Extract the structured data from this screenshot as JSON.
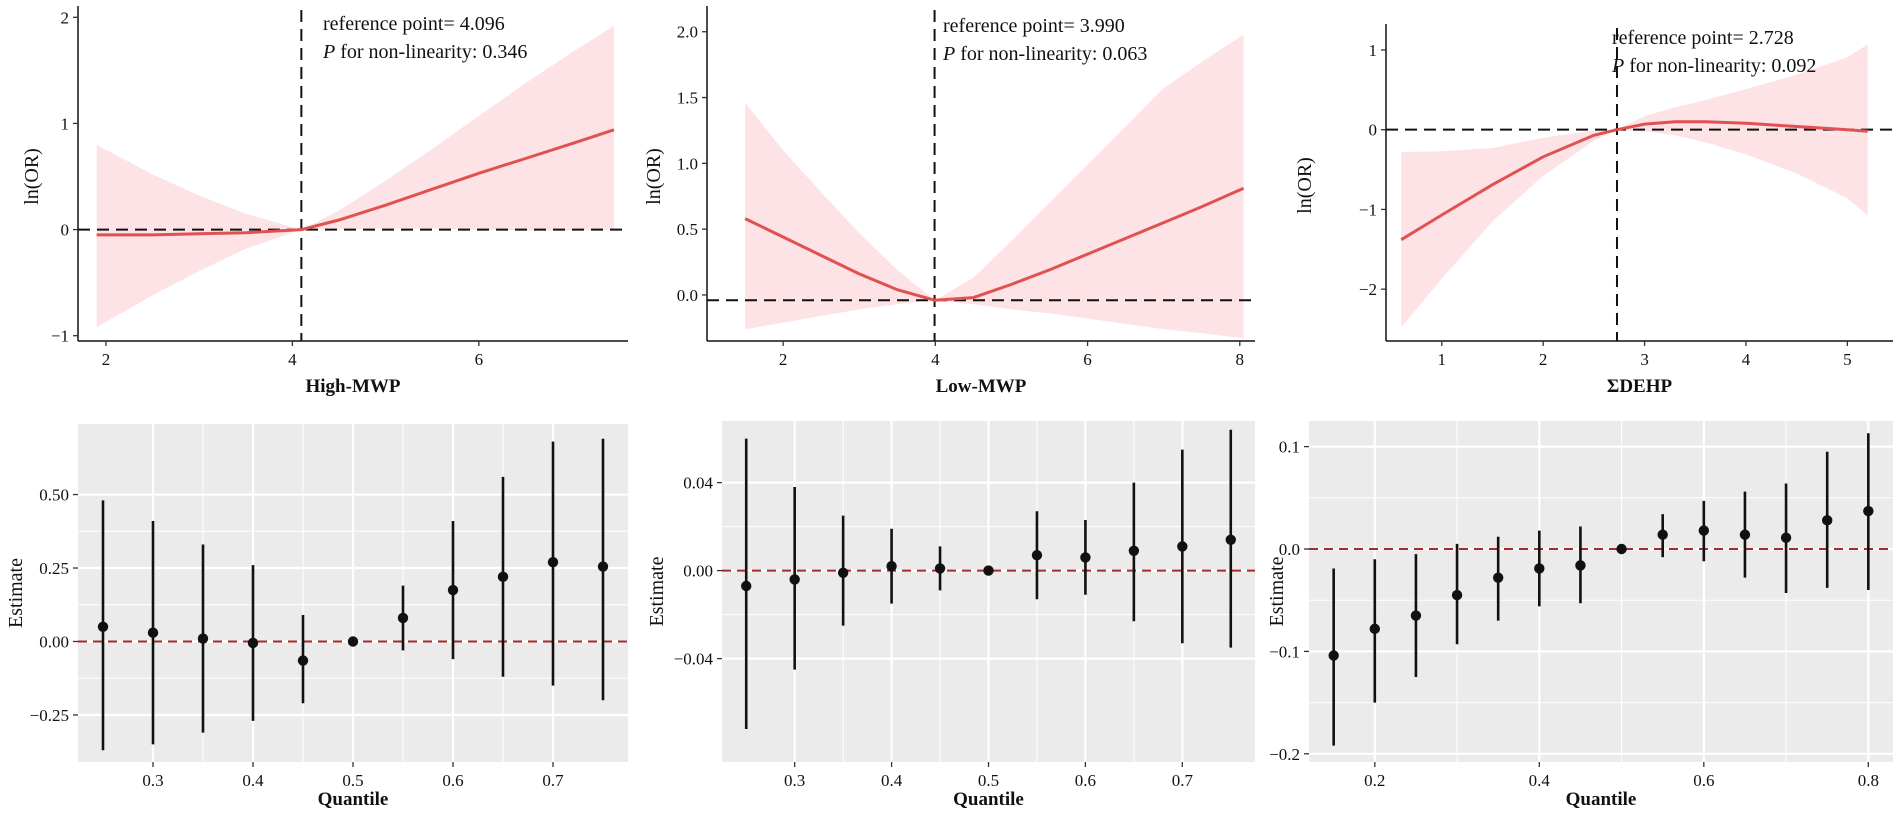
{
  "colors": {
    "curve": "#e05252",
    "band": "#fde3e6",
    "ref_dash": "#111111",
    "panel_bg": "#ebebeb",
    "grid": "#ffffff",
    "zero_line": "#a52a2a",
    "point": "#111111"
  },
  "chart_data": [
    {
      "id": "rcs-high-mwp",
      "type": "line",
      "style": "rcs",
      "xlabel": "High-MWP",
      "ylabel": "ln(OR)",
      "xlim": [
        1.7,
        7.6
      ],
      "ylim": [
        -1.05,
        2.05
      ],
      "xticks": [
        2,
        4,
        6
      ],
      "yticks": [
        -1,
        0,
        1,
        2
      ],
      "ytick_labels": [
        "−1",
        "0",
        "1",
        "2"
      ],
      "ref_x": 4.096,
      "annotation": {
        "line1": "reference point= 4.096",
        "p_label": "P",
        "p_text": " for non-linearity: 0.346"
      },
      "x": [
        1.9,
        2.5,
        3.0,
        3.5,
        4.096,
        4.5,
        5.0,
        5.5,
        6.0,
        6.5,
        7.0,
        7.45
      ],
      "y": [
        -0.05,
        -0.05,
        -0.04,
        -0.03,
        0.0,
        0.09,
        0.23,
        0.38,
        0.53,
        0.67,
        0.81,
        0.94
      ],
      "lower": [
        -0.92,
        -0.62,
        -0.39,
        -0.18,
        0.0,
        0.0,
        0.01,
        0.01,
        0.0,
        -0.01,
        -0.01,
        0.0
      ],
      "upper": [
        0.8,
        0.52,
        0.32,
        0.15,
        0.0,
        0.18,
        0.46,
        0.76,
        1.07,
        1.38,
        1.67,
        1.92
      ]
    },
    {
      "id": "rcs-low-mwp",
      "type": "line",
      "style": "rcs",
      "xlabel": "Low-MWP",
      "ylabel": "ln(OR)",
      "xlim": [
        1.0,
        8.2
      ],
      "ylim": [
        -0.35,
        2.15
      ],
      "xticks": [
        2,
        4,
        6,
        8
      ],
      "yticks": [
        0.0,
        0.5,
        1.0,
        1.5,
        2.0
      ],
      "ytick_labels": [
        "0.0",
        "0.5",
        "1.0",
        "1.5",
        "2.0"
      ],
      "ref_x": 3.99,
      "ref_y": -0.04,
      "annotation": {
        "line1": "reference point= 3.990",
        "p_label": "P",
        "p_text": " for non-linearity: 0.063"
      },
      "x": [
        1.5,
        2.0,
        2.5,
        3.0,
        3.5,
        3.99,
        4.5,
        5.0,
        5.5,
        6.0,
        6.5,
        7.0,
        7.5,
        8.05
      ],
      "y": [
        0.58,
        0.44,
        0.3,
        0.16,
        0.04,
        -0.04,
        -0.02,
        0.08,
        0.19,
        0.31,
        0.43,
        0.55,
        0.67,
        0.81
      ],
      "lower": [
        -0.26,
        -0.21,
        -0.16,
        -0.11,
        -0.07,
        -0.04,
        -0.07,
        -0.11,
        -0.14,
        -0.18,
        -0.22,
        -0.26,
        -0.29,
        -0.33
      ],
      "upper": [
        1.46,
        1.1,
        0.78,
        0.47,
        0.19,
        -0.04,
        0.13,
        0.41,
        0.7,
        0.99,
        1.28,
        1.57,
        1.77,
        1.98
      ]
    },
    {
      "id": "rcs-sum-dehp",
      "type": "line",
      "style": "rcs",
      "xlabel": "ΣDEHP",
      "ylabel": "ln(OR)",
      "xlim": [
        0.45,
        5.45
      ],
      "ylim": [
        -2.65,
        1.25
      ],
      "xticks": [
        1,
        2,
        3,
        4,
        5
      ],
      "yticks": [
        -2,
        -1,
        0,
        1
      ],
      "ytick_labels": [
        "−2",
        "−1",
        "0",
        "1"
      ],
      "ref_x": 2.728,
      "annotation": {
        "line1": "reference point= 2.728",
        "p_label": "P",
        "p_text": " for non-linearity: 0.092"
      },
      "x": [
        0.6,
        1.0,
        1.5,
        2.0,
        2.5,
        2.728,
        3.0,
        3.3,
        3.6,
        4.0,
        4.5,
        5.0,
        5.2
      ],
      "y": [
        -1.38,
        -1.07,
        -0.69,
        -0.34,
        -0.07,
        0.0,
        0.07,
        0.1,
        0.1,
        0.08,
        0.04,
        0.0,
        -0.02
      ],
      "lower": [
        -2.48,
        -1.87,
        -1.15,
        -0.58,
        -0.14,
        0.0,
        -0.02,
        -0.07,
        -0.16,
        -0.31,
        -0.55,
        -0.86,
        -1.08
      ],
      "upper": [
        -0.28,
        -0.27,
        -0.23,
        -0.1,
        -0.01,
        0.0,
        0.17,
        0.28,
        0.37,
        0.51,
        0.69,
        0.91,
        1.07
      ]
    },
    {
      "id": "qgc-high-mwp",
      "type": "scatter",
      "style": "errorbar",
      "xlabel": "Quantile",
      "ylabel": "Estimate",
      "xlim": [
        0.225,
        0.775
      ],
      "ylim": [
        -0.41,
        0.74
      ],
      "xticks": [
        0.3,
        0.4,
        0.5,
        0.6,
        0.7
      ],
      "xtick_labels": [
        "0.3",
        "0.4",
        "0.5",
        "0.6",
        "0.7"
      ],
      "yticks": [
        -0.25,
        0.0,
        0.25,
        0.5
      ],
      "ytick_labels": [
        "−0.25",
        "0.00",
        "0.25",
        "0.50"
      ],
      "x": [
        0.25,
        0.3,
        0.35,
        0.4,
        0.45,
        0.5,
        0.55,
        0.6,
        0.65,
        0.7,
        0.75
      ],
      "y": [
        0.05,
        0.03,
        0.01,
        -0.005,
        -0.065,
        0.0,
        0.08,
        0.175,
        0.22,
        0.27,
        0.255
      ],
      "lower": [
        -0.37,
        -0.35,
        -0.31,
        -0.27,
        -0.21,
        0.0,
        -0.03,
        -0.06,
        -0.12,
        -0.15,
        -0.2
      ],
      "upper": [
        0.48,
        0.41,
        0.33,
        0.26,
        0.09,
        0.0,
        0.19,
        0.41,
        0.56,
        0.68,
        0.69
      ]
    },
    {
      "id": "qgc-low-mwp",
      "type": "scatter",
      "style": "errorbar",
      "xlabel": "Quantile",
      "ylabel": "Estimate",
      "xlim": [
        0.225,
        0.775
      ],
      "ylim": [
        -0.087,
        0.068
      ],
      "xticks": [
        0.3,
        0.4,
        0.5,
        0.6,
        0.7
      ],
      "xtick_labels": [
        "0.3",
        "0.4",
        "0.5",
        "0.6",
        "0.7"
      ],
      "yticks": [
        -0.04,
        0.0,
        0.04
      ],
      "ytick_labels": [
        "−0.04",
        "0.00",
        "0.04"
      ],
      "x": [
        0.25,
        0.3,
        0.35,
        0.4,
        0.45,
        0.5,
        0.55,
        0.6,
        0.65,
        0.7,
        0.75
      ],
      "y": [
        -0.007,
        -0.004,
        -0.001,
        0.002,
        0.001,
        0.0,
        0.007,
        0.006,
        0.009,
        0.011,
        0.014
      ],
      "lower": [
        -0.072,
        -0.045,
        -0.025,
        -0.015,
        -0.009,
        0.0,
        -0.013,
        -0.011,
        -0.023,
        -0.033,
        -0.035
      ],
      "upper": [
        0.06,
        0.038,
        0.025,
        0.019,
        0.011,
        0.0,
        0.027,
        0.023,
        0.04,
        0.055,
        0.064
      ]
    },
    {
      "id": "qgc-sum-dehp",
      "type": "scatter",
      "style": "errorbar",
      "xlabel": "Quantile",
      "ylabel": "Estimate",
      "xlim": [
        0.12,
        0.83
      ],
      "ylim": [
        -0.208,
        0.125
      ],
      "xticks": [
        0.2,
        0.4,
        0.6,
        0.8
      ],
      "xtick_labels": [
        "0.2",
        "0.4",
        "0.6",
        "0.8"
      ],
      "yticks": [
        -0.2,
        -0.1,
        0.0,
        0.1
      ],
      "ytick_labels": [
        "−0.2",
        "−0.1",
        "0.0",
        "0.1"
      ],
      "x": [
        0.15,
        0.2,
        0.25,
        0.3,
        0.35,
        0.4,
        0.45,
        0.5,
        0.55,
        0.6,
        0.65,
        0.7,
        0.75,
        0.8
      ],
      "y": [
        -0.104,
        -0.078,
        -0.065,
        -0.045,
        -0.028,
        -0.019,
        -0.016,
        0.0,
        0.014,
        0.018,
        0.014,
        0.011,
        0.028,
        0.037
      ],
      "lower": [
        -0.192,
        -0.15,
        -0.125,
        -0.093,
        -0.07,
        -0.056,
        -0.053,
        0.0,
        -0.008,
        -0.012,
        -0.028,
        -0.043,
        -0.038,
        -0.04
      ],
      "upper": [
        -0.019,
        -0.01,
        -0.005,
        0.005,
        0.012,
        0.018,
        0.022,
        0.0,
        0.034,
        0.047,
        0.056,
        0.064,
        0.095,
        0.113
      ]
    }
  ]
}
